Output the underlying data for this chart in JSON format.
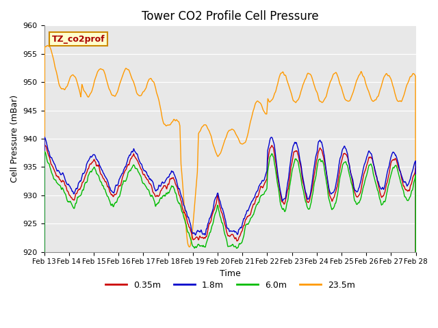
{
  "title": "Tower CO2 Profile Cell Pressure",
  "xlabel": "Time",
  "ylabel": "Cell Pressure (mBar)",
  "ylim": [
    920,
    960
  ],
  "annotation": "TZ_co2prof",
  "legend_labels": [
    "0.35m",
    "1.8m",
    "6.0m",
    "23.5m"
  ],
  "line_colors": [
    "#cc0000",
    "#0000cc",
    "#00bb00",
    "#ff9900"
  ],
  "background_color": "#e8e8e8",
  "title_fontsize": 12
}
